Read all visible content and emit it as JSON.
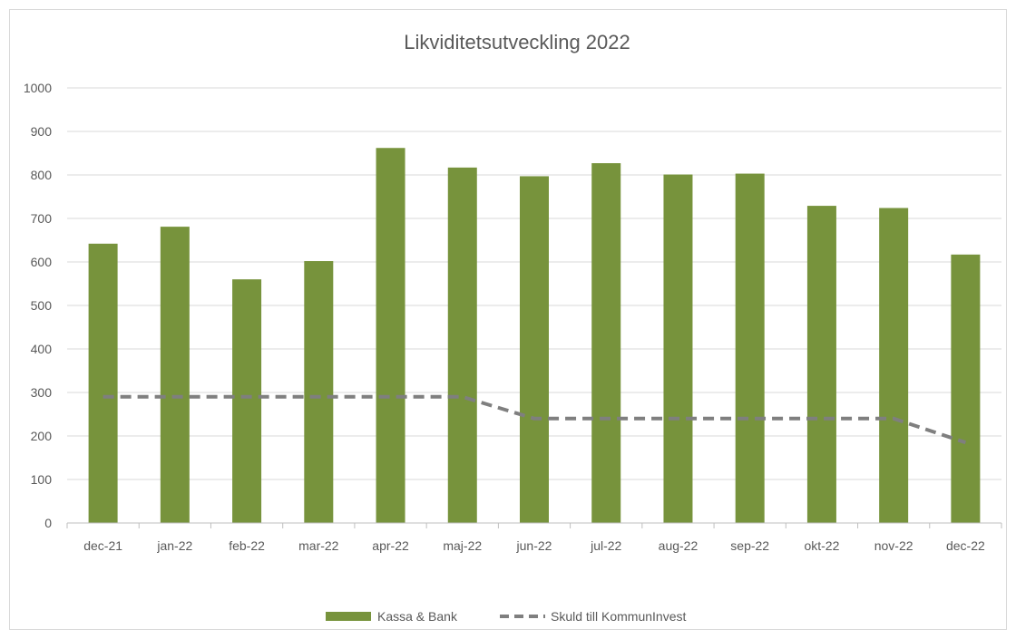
{
  "chart_data": {
    "type": "bar",
    "title": "Likviditetsutveckling 2022",
    "xlabel": "",
    "ylabel": "",
    "categories": [
      "dec-21",
      "jan-22",
      "feb-22",
      "mar-22",
      "apr-22",
      "maj-22",
      "jun-22",
      "jul-22",
      "aug-22",
      "sep-22",
      "okt-22",
      "nov-22",
      "dec-22"
    ],
    "ylim": [
      0,
      1000
    ],
    "yticks": [
      "0",
      "100",
      "200",
      "300",
      "400",
      "500",
      "600",
      "700",
      "800",
      "900",
      "1000"
    ],
    "grid": true,
    "legend_position": "bottom",
    "series": [
      {
        "name": "Kassa & Bank",
        "kind": "bar",
        "color": "#77933c",
        "values": [
          642,
          681,
          560,
          602,
          862,
          817,
          797,
          827,
          801,
          803,
          729,
          724,
          617
        ]
      },
      {
        "name": "Skuld till KommunInvest",
        "kind": "line",
        "style": "dashed",
        "color": "#7f7f7f",
        "values": [
          290,
          290,
          290,
          290,
          290,
          290,
          240,
          240,
          240,
          240,
          240,
          240,
          185
        ]
      }
    ]
  }
}
